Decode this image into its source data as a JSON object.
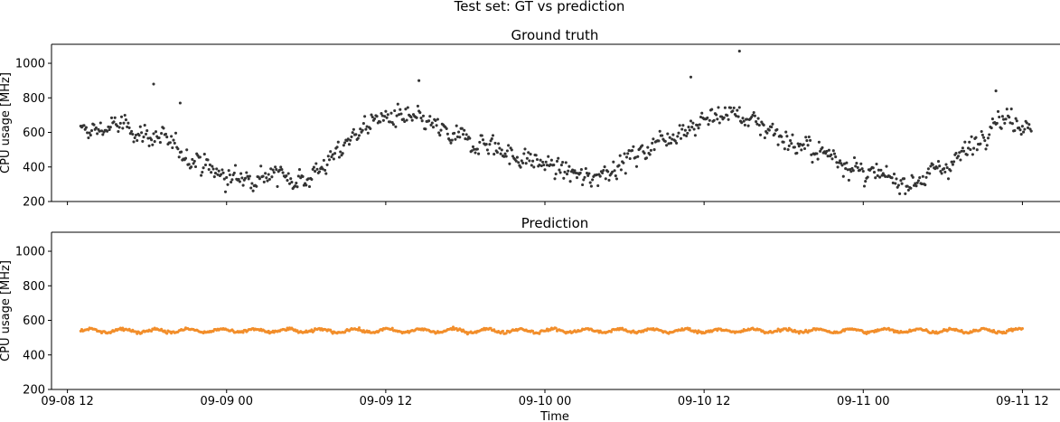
{
  "figure": {
    "suptitle": "Test set: GT vs prediction",
    "xlabel": "Time"
  },
  "chart_data": [
    {
      "type": "scatter",
      "title": "Ground truth",
      "ylabel": "CPU usage [MHz]",
      "xlabel": "",
      "x_axis_type": "datetime",
      "xlim": [
        "2023-09-08T10:48",
        "2023-09-11T14:50"
      ],
      "ylim": [
        200,
        1110
      ],
      "yticks": [
        200,
        400,
        600,
        800,
        1000
      ],
      "xticks": [
        "09-08 12",
        "09-09 00",
        "09-09 12",
        "09-10 00",
        "09-10 12",
        "09-11 00",
        "09-11 12"
      ],
      "xticklabels_shown": false,
      "grid": false,
      "series": [
        {
          "color": "#333333",
          "marker_size": 2.5,
          "x_start": "2023-09-08T13:00",
          "x_end": "2023-09-11T12:40",
          "points_per_hour": 12,
          "trend_y": [
            [
              "2023-09-08T13:00",
              600
            ],
            [
              "2023-09-08T16:00",
              640
            ],
            [
              "2023-09-08T19:00",
              560
            ],
            [
              "2023-09-08T22:00",
              430
            ],
            [
              "2023-09-09T00:00",
              330
            ],
            [
              "2023-09-09T03:00",
              360
            ],
            [
              "2023-09-09T06:00",
              330
            ],
            [
              "2023-09-09T08:00",
              450
            ],
            [
              "2023-09-09T10:00",
              620
            ],
            [
              "2023-09-09T12:00",
              690
            ],
            [
              "2023-09-09T15:00",
              660
            ],
            [
              "2023-09-09T17:00",
              570
            ],
            [
              "2023-09-09T20:00",
              530
            ],
            [
              "2023-09-09T22:00",
              450
            ],
            [
              "2023-09-10T00:00",
              420
            ],
            [
              "2023-09-10T03:00",
              330
            ],
            [
              "2023-09-10T06:00",
              430
            ],
            [
              "2023-09-10T09:00",
              570
            ],
            [
              "2023-09-10T11:00",
              640
            ],
            [
              "2023-09-10T14:00",
              720
            ],
            [
              "2023-09-10T17:00",
              620
            ],
            [
              "2023-09-10T19:00",
              520
            ],
            [
              "2023-09-10T22:00",
              460
            ],
            [
              "2023-09-11T00:00",
              360
            ],
            [
              "2023-09-11T03:00",
              310
            ],
            [
              "2023-09-11T05:00",
              350
            ],
            [
              "2023-09-11T08:00",
              500
            ],
            [
              "2023-09-11T10:00",
              690
            ],
            [
              "2023-09-11T12:40",
              650
            ]
          ],
          "noise_amplitude": 110,
          "notable_points": [
            [
              "2023-09-08T18:30",
              880
            ],
            [
              "2023-09-08T20:30",
              770
            ],
            [
              "2023-09-09T14:30",
              900
            ],
            [
              "2023-09-10T11:00",
              920
            ],
            [
              "2023-09-10T14:40",
              1070
            ],
            [
              "2023-09-11T10:00",
              840
            ]
          ]
        }
      ]
    },
    {
      "type": "scatter",
      "title": "Prediction",
      "ylabel": "CPU usage [MHz]",
      "xlabel": "Time",
      "x_axis_type": "datetime",
      "xlim": [
        "2023-09-08T10:48",
        "2023-09-11T14:50"
      ],
      "ylim": [
        200,
        1110
      ],
      "yticks": [
        200,
        400,
        600,
        800,
        1000
      ],
      "xticks": [
        "09-08 12",
        "09-09 00",
        "09-09 12",
        "09-10 00",
        "09-10 12",
        "09-11 00",
        "09-11 12"
      ],
      "grid": false,
      "series": [
        {
          "color": "#f28e2b",
          "marker_size": 2.5,
          "x_start": "2023-09-08T13:00",
          "x_end": "2023-09-11T12:00",
          "points_per_hour": 12,
          "mean": 540,
          "amplitude": 10,
          "period_hours": 2.5,
          "jitter": 4
        }
      ]
    }
  ]
}
